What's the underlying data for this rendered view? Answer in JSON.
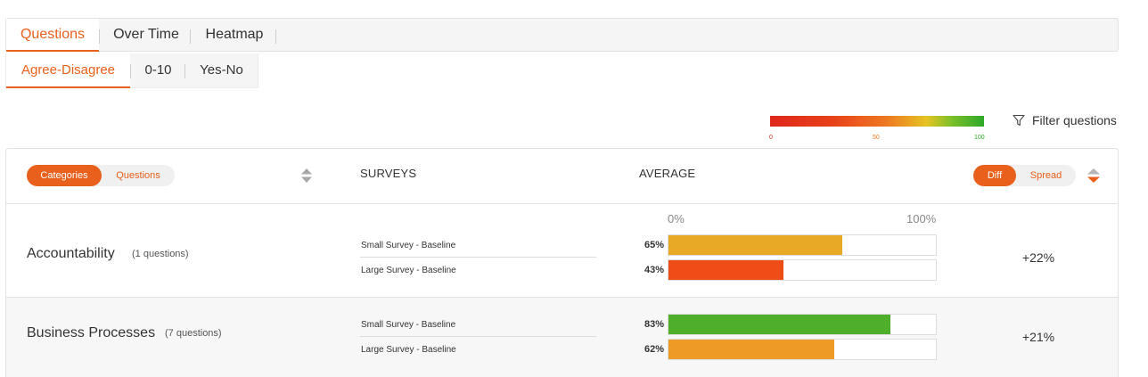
{
  "tabs": [
    "Questions",
    "Over Time",
    "Heatmap"
  ],
  "subtabs": [
    "Agree-Disagree",
    "0-10",
    "Yes-No"
  ],
  "legend": {
    "min": "0",
    "mid": "50",
    "max": "100"
  },
  "filter_label": "Filter questions",
  "toggle_left": {
    "on": "Categories",
    "off": "Questions"
  },
  "columns": {
    "surveys": "SURVEYS",
    "average": "AVERAGE"
  },
  "toggle_right": {
    "on": "Diff",
    "off": "Spread"
  },
  "axis": {
    "min": "0%",
    "max": "100%"
  },
  "rows": [
    {
      "category": "Accountability",
      "count": "(1 questions)",
      "diff": "+22%",
      "surveys": [
        {
          "name": "Small Survey - Baseline",
          "percent_label": "65%",
          "value": 65,
          "color": "#e8a925"
        },
        {
          "name": "Large Survey - Baseline",
          "percent_label": "43%",
          "value": 43,
          "color": "#ee4d18"
        }
      ]
    },
    {
      "category": "Business Processes",
      "count": "(7 questions)",
      "diff": "+21%",
      "surveys": [
        {
          "name": "Small Survey - Baseline",
          "percent_label": "83%",
          "value": 83,
          "color": "#4fae2a"
        },
        {
          "name": "Large Survey - Baseline",
          "percent_label": "62%",
          "value": 62,
          "color": "#ee9a27"
        }
      ]
    }
  ],
  "colors": {
    "accent": "#e8601c",
    "legend_min": "#e0261a",
    "legend_mid": "#ee7a22",
    "legend_max": "#2ea82a"
  }
}
